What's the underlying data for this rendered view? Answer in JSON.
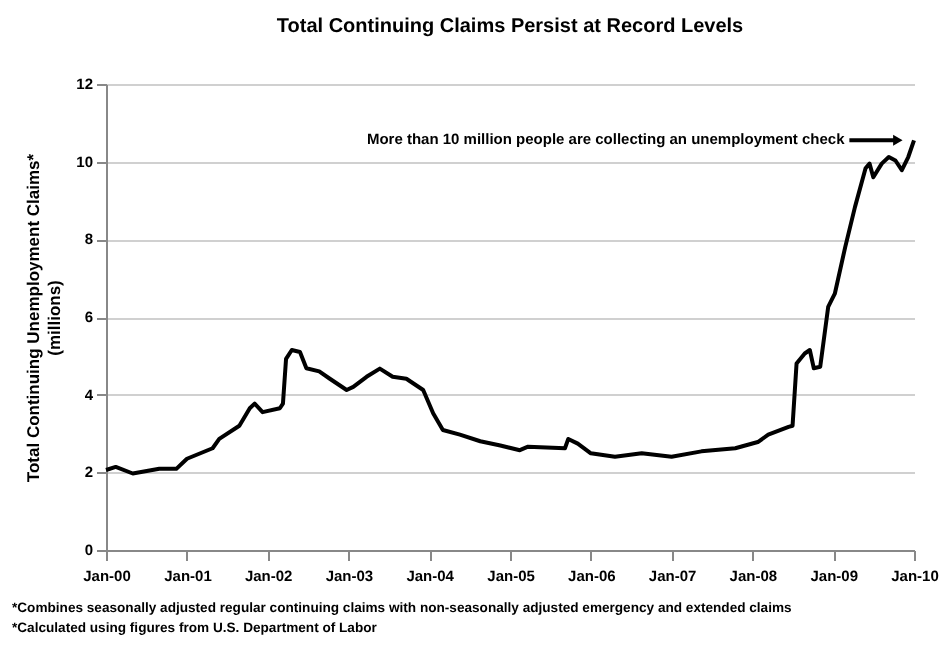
{
  "chart_data": {
    "type": "line",
    "title": "Total Continuing Claims Persist at Record Levels",
    "ylabel": "Total Continuing Unemployment Claims* (millions)",
    "x": [
      "2000-01-01",
      "2000-02-14",
      "2000-05-01",
      "2000-08-29",
      "2000-11-14",
      "2001-01-01",
      "2001-04-27",
      "2001-05-27",
      "2001-08-26",
      "2001-10-12",
      "2001-11-03",
      "2001-12-09",
      "2002-02-25",
      "2002-03-11",
      "2002-03-25",
      "2002-04-20",
      "2002-05-27",
      "2002-06-25",
      "2002-08-22",
      "2002-10-09",
      "2002-12-24",
      "2003-01-23",
      "2003-03-24",
      "2003-05-23",
      "2003-07-20",
      "2003-09-20",
      "2003-12-05",
      "2004-01-19",
      "2004-03-03",
      "2004-05-19",
      "2004-08-19",
      "2004-11-18",
      "2005-02-14",
      "2005-03-23",
      "2005-09-06",
      "2005-09-21",
      "2005-11-03",
      "2006-01-01",
      "2006-04-20",
      "2006-08-19",
      "2007-01-01",
      "2007-05-16",
      "2007-10-16",
      "2008-01-26",
      "2008-03-13",
      "2008-06-13",
      "2008-07-01",
      "2008-07-19",
      "2008-08-25",
      "2008-09-17",
      "2008-10-05",
      "2008-11-03",
      "2008-12-09",
      "2009-01-08",
      "2009-02-24",
      "2009-04-09",
      "2009-05-27",
      "2009-06-14",
      "2009-07-01",
      "2009-08-08",
      "2009-09-09",
      "2009-10-09",
      "2009-11-07",
      "2009-12-06",
      "2010-01-01"
    ],
    "series": [
      {
        "color": "#000000",
        "values": [
          2.06,
          2.14,
          1.97,
          2.09,
          2.09,
          2.35,
          2.62,
          2.86,
          3.2,
          3.65,
          3.77,
          3.55,
          3.65,
          3.77,
          4.92,
          5.15,
          5.1,
          4.68,
          4.6,
          4.41,
          4.12,
          4.2,
          4.46,
          4.67,
          4.46,
          4.41,
          4.12,
          3.52,
          3.09,
          2.97,
          2.8,
          2.69,
          2.57,
          2.66,
          2.62,
          2.86,
          2.74,
          2.49,
          2.4,
          2.49,
          2.4,
          2.54,
          2.62,
          2.78,
          2.97,
          3.17,
          3.2,
          4.8,
          5.06,
          5.15,
          4.68,
          4.72,
          6.26,
          6.6,
          7.8,
          8.83,
          9.83,
          9.95,
          9.6,
          9.95,
          10.12,
          10.03,
          9.78,
          10.12,
          10.55
        ]
      }
    ],
    "xlim": [
      "2000-01-01",
      "2010-01-01"
    ],
    "xticks": [
      {
        "value": "2000-01-01",
        "label": "Jan-00"
      },
      {
        "value": "2001-01-01",
        "label": "Jan-01"
      },
      {
        "value": "2002-01-01",
        "label": "Jan-02"
      },
      {
        "value": "2003-01-01",
        "label": "Jan-03"
      },
      {
        "value": "2004-01-01",
        "label": "Jan-04"
      },
      {
        "value": "2005-01-01",
        "label": "Jan-05"
      },
      {
        "value": "2006-01-01",
        "label": "Jan-06"
      },
      {
        "value": "2007-01-01",
        "label": "Jan-07"
      },
      {
        "value": "2008-01-01",
        "label": "Jan-08"
      },
      {
        "value": "2009-01-01",
        "label": "Jan-09"
      },
      {
        "value": "2010-01-01",
        "label": "Jan-10"
      }
    ],
    "ylim": [
      0,
      12
    ],
    "yticks": [
      0,
      2,
      4,
      6,
      8,
      10,
      12
    ],
    "grid": "y",
    "marker": "none",
    "line_style": "solid",
    "annotations": [
      "More than 10 million people are collecting an unemployment check",
      "*Combines seasonally adjusted regular continuing claims with non-seasonally adjusted emergency and extended claims",
      "*Calculated using figures from U.S. Department of Labor"
    ]
  }
}
